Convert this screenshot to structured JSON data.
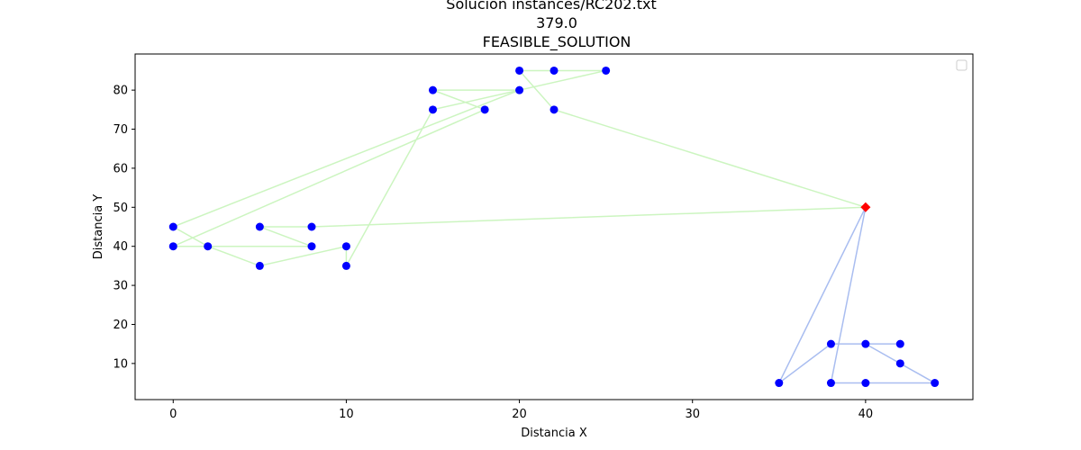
{
  "chart_data": {
    "type": "scatter",
    "title": [
      "Solución instances/RC202.txt",
      "379.0",
      "FEASIBLE_SOLUTION"
    ],
    "xlabel": "Distancia X",
    "ylabel": "Distancia Y",
    "xlim": [
      -2.2,
      46.2
    ],
    "ylim": [
      0.75,
      89.25
    ],
    "xticks": [
      0,
      10,
      20,
      30,
      40
    ],
    "yticks": [
      10,
      20,
      30,
      40,
      50,
      60,
      70,
      80
    ],
    "grid": false,
    "legend": "top-right",
    "depot": {
      "x": 40,
      "y": 50,
      "color": "#ff0000",
      "marker": "diamond"
    },
    "customers": {
      "color": "#0000ff",
      "points": [
        [
          0,
          45
        ],
        [
          0,
          40
        ],
        [
          2,
          40
        ],
        [
          5,
          45
        ],
        [
          5,
          35
        ],
        [
          8,
          45
        ],
        [
          8,
          40
        ],
        [
          10,
          40
        ],
        [
          10,
          35
        ],
        [
          15,
          80
        ],
        [
          15,
          75
        ],
        [
          18,
          75
        ],
        [
          20,
          85
        ],
        [
          20,
          80
        ],
        [
          22,
          85
        ],
        [
          22,
          75
        ],
        [
          25,
          85
        ],
        [
          35,
          5
        ],
        [
          38,
          15
        ],
        [
          38,
          5
        ],
        [
          40,
          15
        ],
        [
          40,
          5
        ],
        [
          42,
          15
        ],
        [
          42,
          10
        ],
        [
          44,
          5
        ]
      ]
    },
    "routes": [
      {
        "color": "#ccf5c0",
        "path": [
          [
            40,
            50
          ],
          [
            22,
            75
          ],
          [
            20,
            85
          ],
          [
            22,
            85
          ],
          [
            25,
            85
          ],
          [
            15,
            75
          ],
          [
            10,
            35
          ],
          [
            10,
            40
          ],
          [
            5,
            35
          ],
          [
            2,
            40
          ],
          [
            0,
            45
          ],
          [
            20,
            80
          ],
          [
            15,
            80
          ],
          [
            18,
            75
          ],
          [
            0,
            40
          ],
          [
            8,
            40
          ],
          [
            5,
            45
          ],
          [
            8,
            45
          ],
          [
            40,
            50
          ]
        ]
      },
      {
        "color": "#a9bdf0",
        "path": [
          [
            40,
            50
          ],
          [
            35,
            5
          ],
          [
            38,
            15
          ],
          [
            40,
            15
          ],
          [
            42,
            15
          ],
          [
            40,
            15
          ],
          [
            42,
            10
          ],
          [
            44,
            5
          ],
          [
            40,
            5
          ],
          [
            38,
            5
          ],
          [
            40,
            50
          ]
        ]
      }
    ]
  }
}
